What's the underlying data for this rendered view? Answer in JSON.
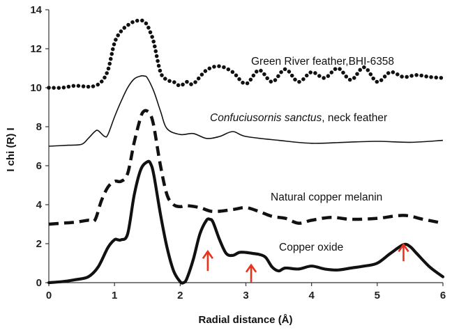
{
  "chart_data": {
    "type": "line",
    "title": "",
    "xlabel": "Radial distance (Å)",
    "ylabel": "I chi (R) I",
    "xlim": [
      0,
      6
    ],
    "ylim": [
      0,
      14
    ],
    "xticks": [
      0,
      1,
      2,
      3,
      4,
      5,
      6
    ],
    "yticks": [
      0,
      2,
      4,
      6,
      8,
      10,
      12,
      14
    ],
    "grid": false,
    "legend": "none",
    "series": [
      {
        "label": "Green River feather,BHI-6358",
        "style": "dotted-heavy",
        "color": "#111111",
        "x": [
          0,
          0.2,
          0.4,
          0.6,
          0.7,
          0.8,
          0.9,
          1.0,
          1.1,
          1.2,
          1.3,
          1.4,
          1.45,
          1.5,
          1.55,
          1.6,
          1.7,
          1.8,
          1.9,
          2.0,
          2.1,
          2.2,
          2.4,
          2.6,
          2.8,
          3.0,
          3.2,
          3.4,
          3.6,
          3.8,
          4.0,
          4.2,
          4.4,
          4.6,
          4.8,
          5.0,
          5.2,
          5.4,
          5.6,
          5.8,
          6.0
        ],
        "y": [
          10.0,
          10.0,
          10.1,
          10.05,
          10.1,
          10.3,
          10.9,
          12.3,
          12.9,
          13.2,
          13.4,
          13.45,
          13.4,
          13.2,
          12.8,
          12.3,
          10.8,
          10.4,
          10.3,
          10.1,
          10.3,
          10.2,
          10.9,
          11.1,
          10.8,
          10.2,
          10.9,
          10.3,
          10.95,
          10.3,
          10.8,
          10.5,
          11.0,
          10.4,
          11.05,
          10.3,
          10.8,
          10.55,
          10.65,
          10.55,
          10.5
        ]
      },
      {
        "label": "Confuciusornis sanctus",
        "label_suffix": ", neck feather",
        "style": "thin",
        "color": "#111111",
        "x": [
          0,
          0.3,
          0.5,
          0.6,
          0.7,
          0.75,
          0.85,
          0.9,
          1.0,
          1.1,
          1.2,
          1.3,
          1.4,
          1.45,
          1.5,
          1.6,
          1.7,
          1.8,
          2.0,
          2.2,
          2.4,
          2.6,
          2.8,
          3.0,
          3.5,
          4.0,
          4.5,
          5.0,
          5.5,
          6.0
        ],
        "y": [
          7.0,
          7.05,
          7.1,
          7.4,
          7.75,
          7.8,
          7.5,
          7.6,
          8.5,
          9.3,
          10.0,
          10.45,
          10.6,
          10.6,
          10.5,
          9.8,
          8.8,
          7.9,
          7.6,
          7.65,
          7.4,
          7.5,
          7.75,
          7.5,
          7.3,
          7.15,
          7.2,
          7.25,
          7.2,
          7.3
        ]
      },
      {
        "label": "Natural copper melanin",
        "style": "dashed-heavy",
        "color": "#111111",
        "x": [
          0,
          0.2,
          0.4,
          0.6,
          0.7,
          0.8,
          0.9,
          1.0,
          1.1,
          1.2,
          1.3,
          1.4,
          1.45,
          1.5,
          1.55,
          1.6,
          1.7,
          1.8,
          1.9,
          2.0,
          2.1,
          2.3,
          2.5,
          2.8,
          3.0,
          3.2,
          3.4,
          3.6,
          3.8,
          4.0,
          4.3,
          4.6,
          5.0,
          5.4,
          5.7,
          6.0
        ],
        "y": [
          3.0,
          3.05,
          3.1,
          3.2,
          3.2,
          4.2,
          4.9,
          5.2,
          5.2,
          5.6,
          7.2,
          8.5,
          8.8,
          8.8,
          8.6,
          8.0,
          6.0,
          4.5,
          4.0,
          3.9,
          3.95,
          3.85,
          3.65,
          3.75,
          3.85,
          3.65,
          3.4,
          3.3,
          3.05,
          3.2,
          3.35,
          3.25,
          3.3,
          3.45,
          3.25,
          3.05
        ]
      },
      {
        "label": "Copper oxide",
        "style": "solid-heavy",
        "color": "#111111",
        "x": [
          0,
          0.2,
          0.4,
          0.6,
          0.75,
          0.9,
          1.0,
          1.05,
          1.1,
          1.2,
          1.3,
          1.4,
          1.5,
          1.55,
          1.6,
          1.7,
          1.8,
          1.9,
          2.0,
          2.05,
          2.1,
          2.2,
          2.3,
          2.4,
          2.45,
          2.5,
          2.6,
          2.7,
          2.8,
          2.9,
          3.0,
          3.1,
          3.2,
          3.3,
          3.4,
          3.5,
          3.6,
          3.8,
          4.0,
          4.2,
          4.4,
          4.6,
          4.8,
          5.0,
          5.2,
          5.4,
          5.5,
          5.6,
          5.8,
          6.0
        ],
        "y": [
          0.0,
          0.05,
          0.15,
          0.3,
          0.8,
          1.8,
          2.2,
          2.2,
          2.2,
          2.5,
          4.5,
          5.8,
          6.2,
          6.1,
          5.5,
          3.5,
          1.8,
          0.6,
          0.05,
          0.0,
          0.2,
          1.2,
          2.5,
          3.2,
          3.25,
          3.1,
          2.2,
          1.5,
          1.4,
          1.55,
          1.55,
          1.5,
          1.45,
          1.3,
          0.8,
          0.6,
          0.75,
          0.7,
          0.85,
          0.7,
          0.65,
          0.75,
          0.85,
          1.0,
          1.5,
          1.95,
          1.85,
          1.5,
          0.8,
          0.3
        ]
      }
    ],
    "arrows": [
      {
        "x": 2.42,
        "y_from": 0.6,
        "y_to": 1.6,
        "color": "#e8321e"
      },
      {
        "x": 3.08,
        "y_from": 0.0,
        "y_to": 0.9,
        "color": "#e8321e"
      },
      {
        "x": 5.4,
        "y_from": 1.1,
        "y_to": 1.95,
        "color": "#e8321e"
      }
    ]
  }
}
